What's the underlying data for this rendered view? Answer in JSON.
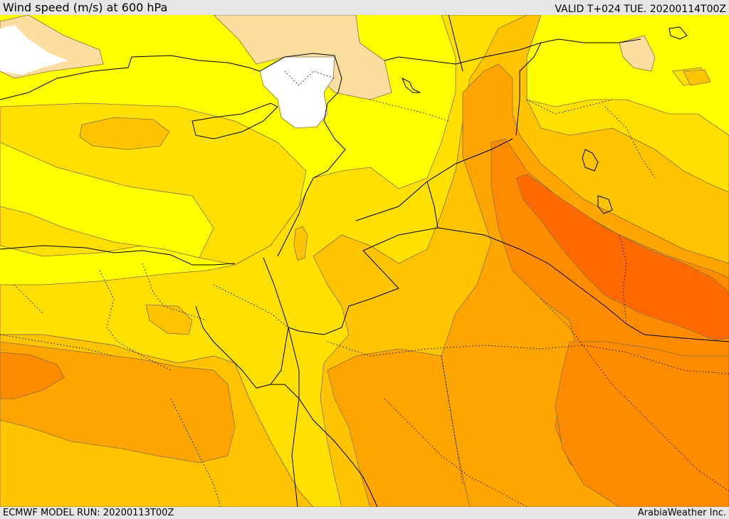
{
  "header": {
    "title": "Wind speed (m/s) at 600 hPa",
    "valid": "VALID T+024 TUE. 20200114T00Z"
  },
  "footer": {
    "model_run": "ECMWF MODEL RUN: 20200113T00Z",
    "credit": "ArabiaWeather Inc."
  },
  "map": {
    "variable": "wind speed",
    "unit": "m/s",
    "level": "600 hPa",
    "legend": "none",
    "colors": {
      "below": "#ffffff",
      "light": "#fddda0",
      "yellow": "#ffff00",
      "gold": "#ffe000",
      "amber": "#ffc400",
      "orange_light": "#ffa500",
      "orange": "#ff8c00",
      "orange_deep": "#ff6a00",
      "contour_line": "#8c6d3f",
      "border": "#000000"
    }
  }
}
